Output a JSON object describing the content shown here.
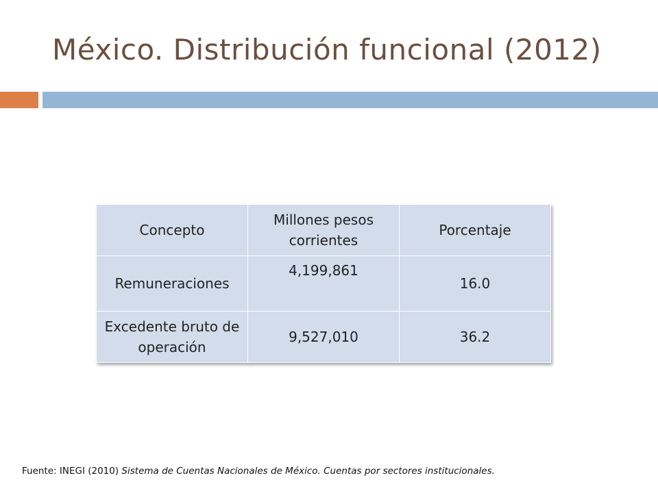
{
  "slide": {
    "title": "México. Distribución funcional (2012)",
    "colors": {
      "title": "#6b4f3f",
      "accent_bar": "#dd8047",
      "main_bar": "#94b6d2",
      "table_cell": "#d2dcea"
    }
  },
  "table": {
    "headers": [
      "Concepto",
      "Millones pesos corrientes",
      "Porcentaje"
    ],
    "rows": [
      [
        "Remuneraciones",
        "4,199,861",
        "16.0"
      ],
      [
        "Excedente bruto de operación",
        "9,527,010",
        "36.2"
      ]
    ]
  },
  "source": {
    "prefix": "Fuente: INEGI (2010) ",
    "italic": "Sistema de Cuentas Nacionales de México. Cuentas por sectores institucionales."
  }
}
